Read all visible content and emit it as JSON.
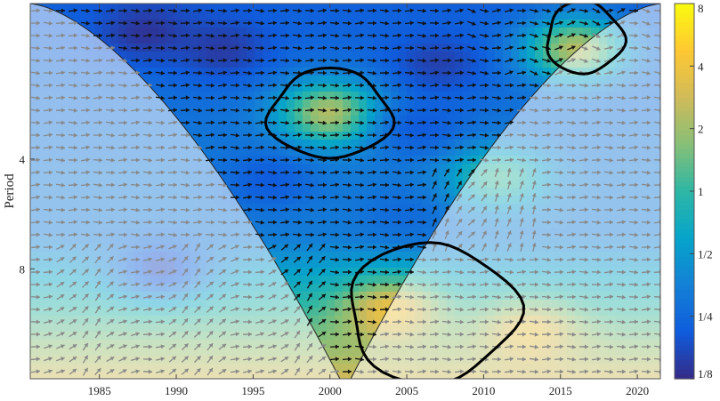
{
  "chart_data": {
    "type": "heatmap",
    "title": "",
    "xlabel": "",
    "ylabel": "Period",
    "x_ticks": [
      "1985",
      "1990",
      "1995",
      "2000",
      "2005",
      "2010",
      "2015",
      "2020"
    ],
    "x_tick_values": [
      1985,
      1990,
      1995,
      2000,
      2005,
      2010,
      2015,
      2020
    ],
    "xlim": [
      1980.5,
      2021.5
    ],
    "y_ticks": [
      "4",
      "8"
    ],
    "y_tick_values": [
      4,
      8
    ],
    "ylim": [
      1.5,
      16
    ],
    "y_scale": "log2",
    "y_reversed": true,
    "colorbar": {
      "tick_labels": [
        "1/8",
        "1/4",
        "1/2",
        "1",
        "2",
        "4",
        "8"
      ],
      "tick_values": [
        0.125,
        0.25,
        0.5,
        1,
        2,
        4,
        8
      ],
      "scale": "log2",
      "colormap": "parula",
      "colors": [
        "#352a87",
        "#0f5cdd",
        "#1481d6",
        "#06a4ca",
        "#2eb7a4",
        "#87bf77",
        "#d1bb59",
        "#fec832",
        "#f9fb0e"
      ]
    },
    "cone_of_influence_peak_year": 2001,
    "significance_regions": [
      {
        "x_range": [
          1996,
          2004
        ],
        "period_range": [
          2.3,
          3.9
        ]
      },
      {
        "x_range": [
          2014,
          2019
        ],
        "period_range": [
          1.5,
          2.3
        ]
      },
      {
        "x_range": [
          2001,
          2012
        ],
        "period_range": [
          7,
          16
        ]
      }
    ],
    "power_features": [
      {
        "year": 1988,
        "period": 1.8,
        "power": 0.13
      },
      {
        "year": 1993,
        "period": 2.0,
        "power": 0.14
      },
      {
        "year": 2007,
        "period": 2.2,
        "power": 0.15
      },
      {
        "year": 2000,
        "period": 3.0,
        "power": 3.0
      },
      {
        "year": 2016,
        "period": 2.0,
        "power": 3.0
      },
      {
        "year": 2006,
        "period": 3.3,
        "power": 0.2
      },
      {
        "year": 1996,
        "period": 4.6,
        "power": 0.2
      },
      {
        "year": 2005,
        "period": 5.6,
        "power": 0.25
      },
      {
        "year": 1989,
        "period": 8.0,
        "power": 0.15
      },
      {
        "year": 2004,
        "period": 10.5,
        "power": 4.5
      },
      {
        "year": 2013,
        "period": 12.0,
        "power": 4.0
      },
      {
        "year": 2011,
        "period": 4.5,
        "power": 1.3
      }
    ],
    "arrow_colors": {
      "inside_cone": "#111111",
      "outside_cone": "#888888"
    },
    "cone_color": "#808080",
    "significance_color": "#000000"
  }
}
